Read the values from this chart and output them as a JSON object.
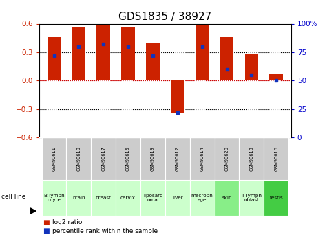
{
  "title": "GDS1835 / 38927",
  "samples": [
    "GSM90611",
    "GSM90618",
    "GSM90617",
    "GSM90615",
    "GSM90619",
    "GSM90612",
    "GSM90614",
    "GSM90620",
    "GSM90613",
    "GSM90616"
  ],
  "cell_lines": [
    "B lymph\nocyte",
    "brain",
    "breast",
    "cervix",
    "liposarc\noma",
    "liver",
    "macroph\nage",
    "skin",
    "T lymph\noblast",
    "testis"
  ],
  "log2_ratio": [
    0.46,
    0.57,
    0.62,
    0.56,
    0.4,
    -0.34,
    0.6,
    0.46,
    0.28,
    0.07
  ],
  "percentile_rank_pct": [
    72,
    80,
    82,
    80,
    72,
    22,
    80,
    60,
    55,
    50
  ],
  "bar_color": "#cc2200",
  "dot_color": "#1133bb",
  "sample_box_color": "#cccccc",
  "title_fontsize": 11,
  "axis_label_color_left": "#cc2200",
  "axis_label_color_right": "#0000cc",
  "ylim": [
    -0.6,
    0.6
  ],
  "y2lim": [
    0,
    100
  ],
  "cell_line_colors": [
    "#ccffcc",
    "#ccffcc",
    "#ccffcc",
    "#ccffcc",
    "#ccffcc",
    "#ccffcc",
    "#ccffcc",
    "#88ee88",
    "#ccffcc",
    "#44cc44"
  ],
  "bar_width": 0.55
}
